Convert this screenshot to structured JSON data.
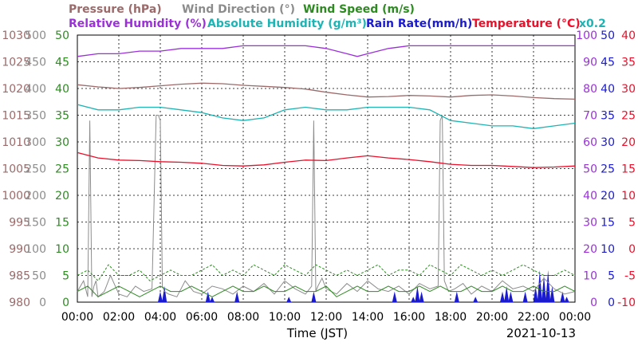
{
  "chart_data": {
    "type": "line",
    "date": "2021-10-13",
    "xlabel": "Time (JST)",
    "x_ticks": [
      "00:00",
      "02:00",
      "04:00",
      "06:00",
      "08:00",
      "10:00",
      "12:00",
      "14:00",
      "16:00",
      "18:00",
      "20:00",
      "22:00",
      "00:00"
    ],
    "legend_row1": [
      {
        "text": "Pressure (hPa)",
        "color": "#9b6a6a"
      },
      {
        "text": "Wind Direction (°)",
        "color": "#8c8c8c"
      },
      {
        "text": "Wind Speed (m/s)",
        "color": "#2e8b22"
      }
    ],
    "legend_row2": [
      {
        "text": "Relative Humidity (%)",
        "color": "#9b30d9"
      },
      {
        "text": "Absolute Humidity (g/m³)",
        "color": "#1fb3b3"
      },
      {
        "text": "Rain Rate(mm/h)",
        "color": "#1a1ad0"
      },
      {
        "text": "Temperature (°C)",
        "color": "#e8102a"
      },
      {
        "text": "x0.2",
        "color": "#1fb3b3"
      }
    ],
    "axes": {
      "pressure": {
        "color": "#9b6a6a",
        "ticks": [
          "980",
          "985",
          "990",
          "995",
          "1000",
          "1005",
          "1010",
          "1015",
          "1020",
          "1025",
          "1030"
        ]
      },
      "wind_direction": {
        "color": "#8c8c8c",
        "ticks": [
          "0",
          "50",
          "100",
          "150",
          "200",
          "250",
          "300",
          "350",
          "400",
          "450",
          "500"
        ]
      },
      "wind_speed": {
        "color": "#2e8b22",
        "ticks": [
          "0",
          "5",
          "10",
          "15",
          "20",
          "25",
          "30",
          "35",
          "40",
          "45",
          "50"
        ]
      },
      "humidity": {
        "color": "#9b30d9",
        "ticks": [
          "0",
          "10",
          "20",
          "30",
          "40",
          "50",
          "60",
          "70",
          "80",
          "90",
          "100"
        ]
      },
      "rain_rate": {
        "color": "#1a1ad0",
        "ticks": [
          "0",
          "5",
          "10",
          "15",
          "20",
          "25",
          "30",
          "35",
          "40",
          "45",
          "50"
        ]
      },
      "temperature": {
        "color": "#e8102a",
        "ticks": [
          "-10",
          "-5",
          "0",
          "5",
          "10",
          "15",
          "20",
          "25",
          "30",
          "35",
          "40"
        ]
      }
    },
    "series": [
      {
        "key": "relative_humidity",
        "color": "#9b30d9",
        "x": [
          0,
          1,
          2,
          3,
          4,
          5,
          6,
          7,
          8,
          9,
          10,
          11,
          12,
          13,
          13.5,
          14,
          15,
          16,
          17,
          18,
          19,
          20,
          21,
          22,
          23,
          24
        ],
        "values": [
          92,
          93,
          93,
          94,
          94,
          95,
          95,
          95,
          96,
          96,
          96,
          96,
          95,
          93,
          92,
          93,
          95,
          96,
          96,
          96,
          96,
          96,
          96,
          96,
          96,
          96
        ]
      },
      {
        "key": "pressure",
        "color": "#9b6a6a",
        "x": [
          0,
          1,
          2,
          3,
          4,
          5,
          6,
          7,
          8,
          9,
          10,
          11,
          12,
          13,
          14,
          15,
          16,
          17,
          18,
          19,
          20,
          21,
          22,
          23,
          24
        ],
        "values": [
          1020.7,
          1020.3,
          1020.0,
          1020.2,
          1020.5,
          1020.8,
          1021.0,
          1020.9,
          1020.6,
          1020.4,
          1020.2,
          1019.9,
          1019.3,
          1018.8,
          1018.4,
          1018.5,
          1018.7,
          1018.6,
          1018.4,
          1018.7,
          1018.8,
          1018.6,
          1018.3,
          1018.1,
          1018.0
        ]
      },
      {
        "key": "absolute_humidity",
        "color": "#1fb3b3",
        "x": [
          0,
          1,
          2,
          3,
          4,
          5,
          6,
          7,
          8,
          9,
          10,
          11,
          12,
          13,
          14,
          15,
          16,
          17,
          18,
          19,
          20,
          21,
          22,
          23,
          24
        ],
        "values": [
          74,
          72,
          72,
          73,
          73,
          72,
          71,
          69,
          68,
          69,
          72,
          73,
          72,
          72,
          73,
          73,
          73,
          72,
          68,
          67,
          66,
          66,
          65,
          66,
          67
        ]
      },
      {
        "key": "temperature",
        "color": "#e8102a",
        "x": [
          0,
          1,
          2,
          3,
          4,
          5,
          6,
          7,
          8,
          9,
          10,
          11,
          12,
          13,
          14,
          15,
          16,
          17,
          18,
          19,
          20,
          21,
          22,
          23,
          24
        ],
        "values": [
          18.0,
          17.0,
          16.6,
          16.5,
          16.3,
          16.2,
          16.0,
          15.6,
          15.5,
          15.7,
          16.2,
          16.6,
          16.5,
          17.0,
          17.4,
          17.0,
          16.7,
          16.3,
          15.8,
          15.6,
          15.6,
          15.4,
          15.2,
          15.3,
          15.5
        ]
      },
      {
        "key": "wind_direction",
        "color": "#8c8c8c",
        "x": [
          0,
          0.3,
          0.5,
          0.6,
          0.7,
          0.8,
          0.9,
          1.0,
          1.3,
          1.6,
          2.0,
          2.4,
          2.8,
          3.2,
          3.6,
          3.8,
          3.9,
          4.0,
          4.1,
          4.2,
          4.4,
          4.8,
          5.2,
          5.6,
          6.0,
          6.5,
          7.0,
          7.5,
          8.0,
          8.5,
          9.0,
          9.5,
          10.0,
          10.5,
          11.0,
          11.3,
          11.4,
          11.5,
          11.6,
          11.8,
          12.0,
          12.5,
          13.0,
          13.5,
          14.0,
          14.5,
          15.0,
          15.5,
          16.0,
          16.5,
          17.0,
          17.4,
          17.5,
          17.6,
          17.7,
          17.9,
          18.2,
          18.6,
          19.0,
          19.5,
          20.0,
          20.5,
          21.0,
          21.5,
          22.0,
          22.5,
          23.0,
          23.5,
          24.0
        ],
        "values": [
          20,
          40,
          10,
          340,
          10,
          30,
          40,
          10,
          20,
          50,
          15,
          10,
          30,
          20,
          25,
          350,
          350,
          340,
          30,
          20,
          15,
          10,
          40,
          20,
          15,
          30,
          25,
          15,
          30,
          20,
          35,
          15,
          40,
          25,
          15,
          30,
          340,
          20,
          30,
          45,
          25,
          15,
          35,
          20,
          40,
          25,
          20,
          30,
          15,
          35,
          25,
          30,
          340,
          350,
          40,
          20,
          25,
          35,
          15,
          30,
          20,
          40,
          25,
          30,
          20,
          45,
          25,
          15,
          20
        ]
      },
      {
        "key": "wind_speed",
        "color": "#2e8b22",
        "x": [
          0,
          0.5,
          1,
          1.5,
          2,
          2.5,
          3,
          3.5,
          4,
          4.5,
          5,
          5.5,
          6,
          6.5,
          7,
          7.5,
          8,
          8.5,
          9,
          9.5,
          10,
          10.5,
          11,
          11.5,
          12,
          12.5,
          13,
          13.5,
          14,
          14.5,
          15,
          15.5,
          16,
          16.5,
          17,
          17.5,
          18,
          18.5,
          19,
          19.5,
          20,
          20.5,
          21,
          21.5,
          22,
          22.5,
          23,
          23.5,
          24
        ],
        "values": [
          2,
          3,
          1,
          2,
          3,
          2,
          1,
          2,
          3,
          2,
          2,
          3,
          2,
          1,
          2,
          3,
          2,
          2,
          3,
          2,
          2,
          3,
          2,
          2,
          3,
          1,
          2,
          3,
          2,
          2,
          3,
          2,
          2,
          3,
          2,
          3,
          2,
          2,
          3,
          2,
          2,
          3,
          2,
          2,
          3,
          2,
          2,
          3,
          2
        ]
      },
      {
        "key": "wind_gust",
        "color": "#2e8b22",
        "x": [
          0,
          0.5,
          1,
          1.5,
          2,
          2.5,
          3,
          3.5,
          4,
          4.5,
          5,
          5.5,
          6,
          6.5,
          7,
          7.5,
          8,
          8.5,
          9,
          9.5,
          10,
          10.5,
          11,
          11.5,
          12,
          12.5,
          13,
          13.5,
          14,
          14.5,
          15,
          15.5,
          16,
          16.5,
          17,
          17.5,
          18,
          18.5,
          19,
          19.5,
          20,
          20.5,
          21,
          21.5,
          22,
          22.5,
          23,
          23.5,
          24
        ],
        "values": [
          5,
          6,
          4,
          7,
          5,
          5,
          6,
          4,
          5,
          6,
          5,
          5,
          6,
          7,
          5,
          6,
          5,
          7,
          6,
          5,
          7,
          6,
          5,
          7,
          6,
          5,
          6,
          5,
          6,
          7,
          5,
          6,
          6,
          5,
          7,
          6,
          5,
          7,
          6,
          5,
          6,
          5,
          6,
          7,
          6,
          5,
          5,
          6,
          5
        ]
      },
      {
        "key": "rain_rate",
        "color": "#1a1ad0",
        "x": [
          4.0,
          4.2,
          6.3,
          6.5,
          7.7,
          10.2,
          11.4,
          15.3,
          16.2,
          16.4,
          16.6,
          18.3,
          19.2,
          20.5,
          20.7,
          20.9,
          21.6,
          22.1,
          22.3,
          22.5,
          22.7,
          22.9,
          23.4,
          23.6
        ],
        "values": [
          2,
          3,
          2,
          1,
          2,
          1,
          2,
          2,
          1,
          3,
          2,
          2,
          1,
          2,
          3,
          2,
          2,
          3,
          6,
          5,
          6,
          3,
          2,
          1
        ]
      }
    ]
  }
}
